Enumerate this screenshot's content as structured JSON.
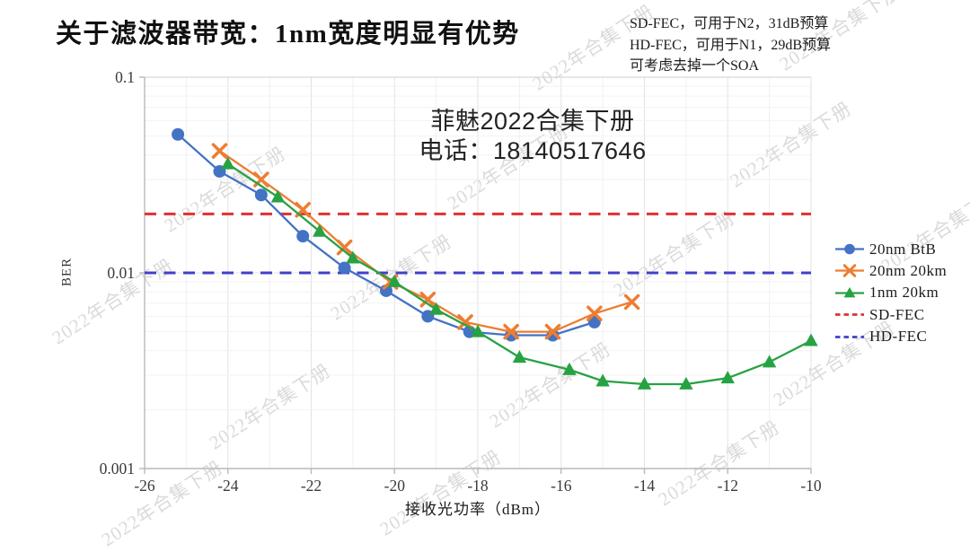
{
  "page": {
    "title": "关于滤波器带宽：1nm宽度明显有优势"
  },
  "annotation": {
    "lines": [
      "SD-FEC，可用于N2，31dB预算",
      "HD-FEC，可用于N1，29dB预算",
      "可考虑去掉一个SOA"
    ]
  },
  "watermark": {
    "center_line1": "菲魅2022合集下册",
    "center_line2": "电话：18140517646",
    "tiled_text": "2022年合集下册"
  },
  "chart_data": {
    "type": "line",
    "title": "",
    "xlabel": "接收光功率（dBm）",
    "ylabel": "BER",
    "x_ticks": [
      -26,
      -24,
      -22,
      -20,
      -18,
      -16,
      -14,
      -12,
      -10
    ],
    "xlim": [
      -26,
      -10
    ],
    "y_scale": "log",
    "y_ticks": [
      "0.1",
      "0.01",
      "0.001"
    ],
    "y_tick_values": [
      0.1,
      0.01,
      0.001
    ],
    "ylim": [
      0.001,
      0.1
    ],
    "grid": "minor-light-gray",
    "legend_position": "right",
    "series": [
      {
        "name": "20nm BtB",
        "color": "#4472C4",
        "marker": "circle",
        "points": [
          [
            -25.2,
            0.051
          ],
          [
            -24.2,
            0.033
          ],
          [
            -23.2,
            0.025
          ],
          [
            -22.2,
            0.0154
          ],
          [
            -21.2,
            0.0106
          ],
          [
            -20.2,
            0.0081
          ],
          [
            -19.2,
            0.006
          ],
          [
            -18.2,
            0.005
          ],
          [
            -17.2,
            0.0048
          ],
          [
            -16.2,
            0.0048
          ],
          [
            -15.2,
            0.0056
          ]
        ]
      },
      {
        "name": "20nm 20km",
        "color": "#ED7D31",
        "marker": "x",
        "points": [
          [
            -24.2,
            0.042
          ],
          [
            -23.2,
            0.03
          ],
          [
            -22.2,
            0.021
          ],
          [
            -21.2,
            0.0135
          ],
          [
            -20.1,
            0.009
          ],
          [
            -19.2,
            0.0073
          ],
          [
            -18.3,
            0.0056
          ],
          [
            -17.2,
            0.005
          ],
          [
            -16.2,
            0.005
          ],
          [
            -15.2,
            0.0062
          ],
          [
            -14.3,
            0.0071
          ]
        ]
      },
      {
        "name": "1nm 20km",
        "color": "#27A243",
        "marker": "triangle",
        "points": [
          [
            -24.0,
            0.036
          ],
          [
            -22.8,
            0.0244
          ],
          [
            -21.8,
            0.0163
          ],
          [
            -21.0,
            0.0119
          ],
          [
            -20.0,
            0.009
          ],
          [
            -19.0,
            0.0065
          ],
          [
            -18.0,
            0.005
          ],
          [
            -17.0,
            0.0037
          ],
          [
            -15.8,
            0.0032
          ],
          [
            -15.0,
            0.0028
          ],
          [
            -14.0,
            0.0027
          ],
          [
            -13.0,
            0.0027
          ],
          [
            -12.0,
            0.0029
          ],
          [
            -11.0,
            0.0035
          ],
          [
            -10.0,
            0.0045
          ]
        ]
      }
    ],
    "thresholds": [
      {
        "name": "SD-FEC",
        "color": "#E03030",
        "style": "dashed",
        "y": 0.02
      },
      {
        "name": "HD-FEC",
        "color": "#4040C8",
        "style": "dashed",
        "y": 0.01
      }
    ]
  }
}
